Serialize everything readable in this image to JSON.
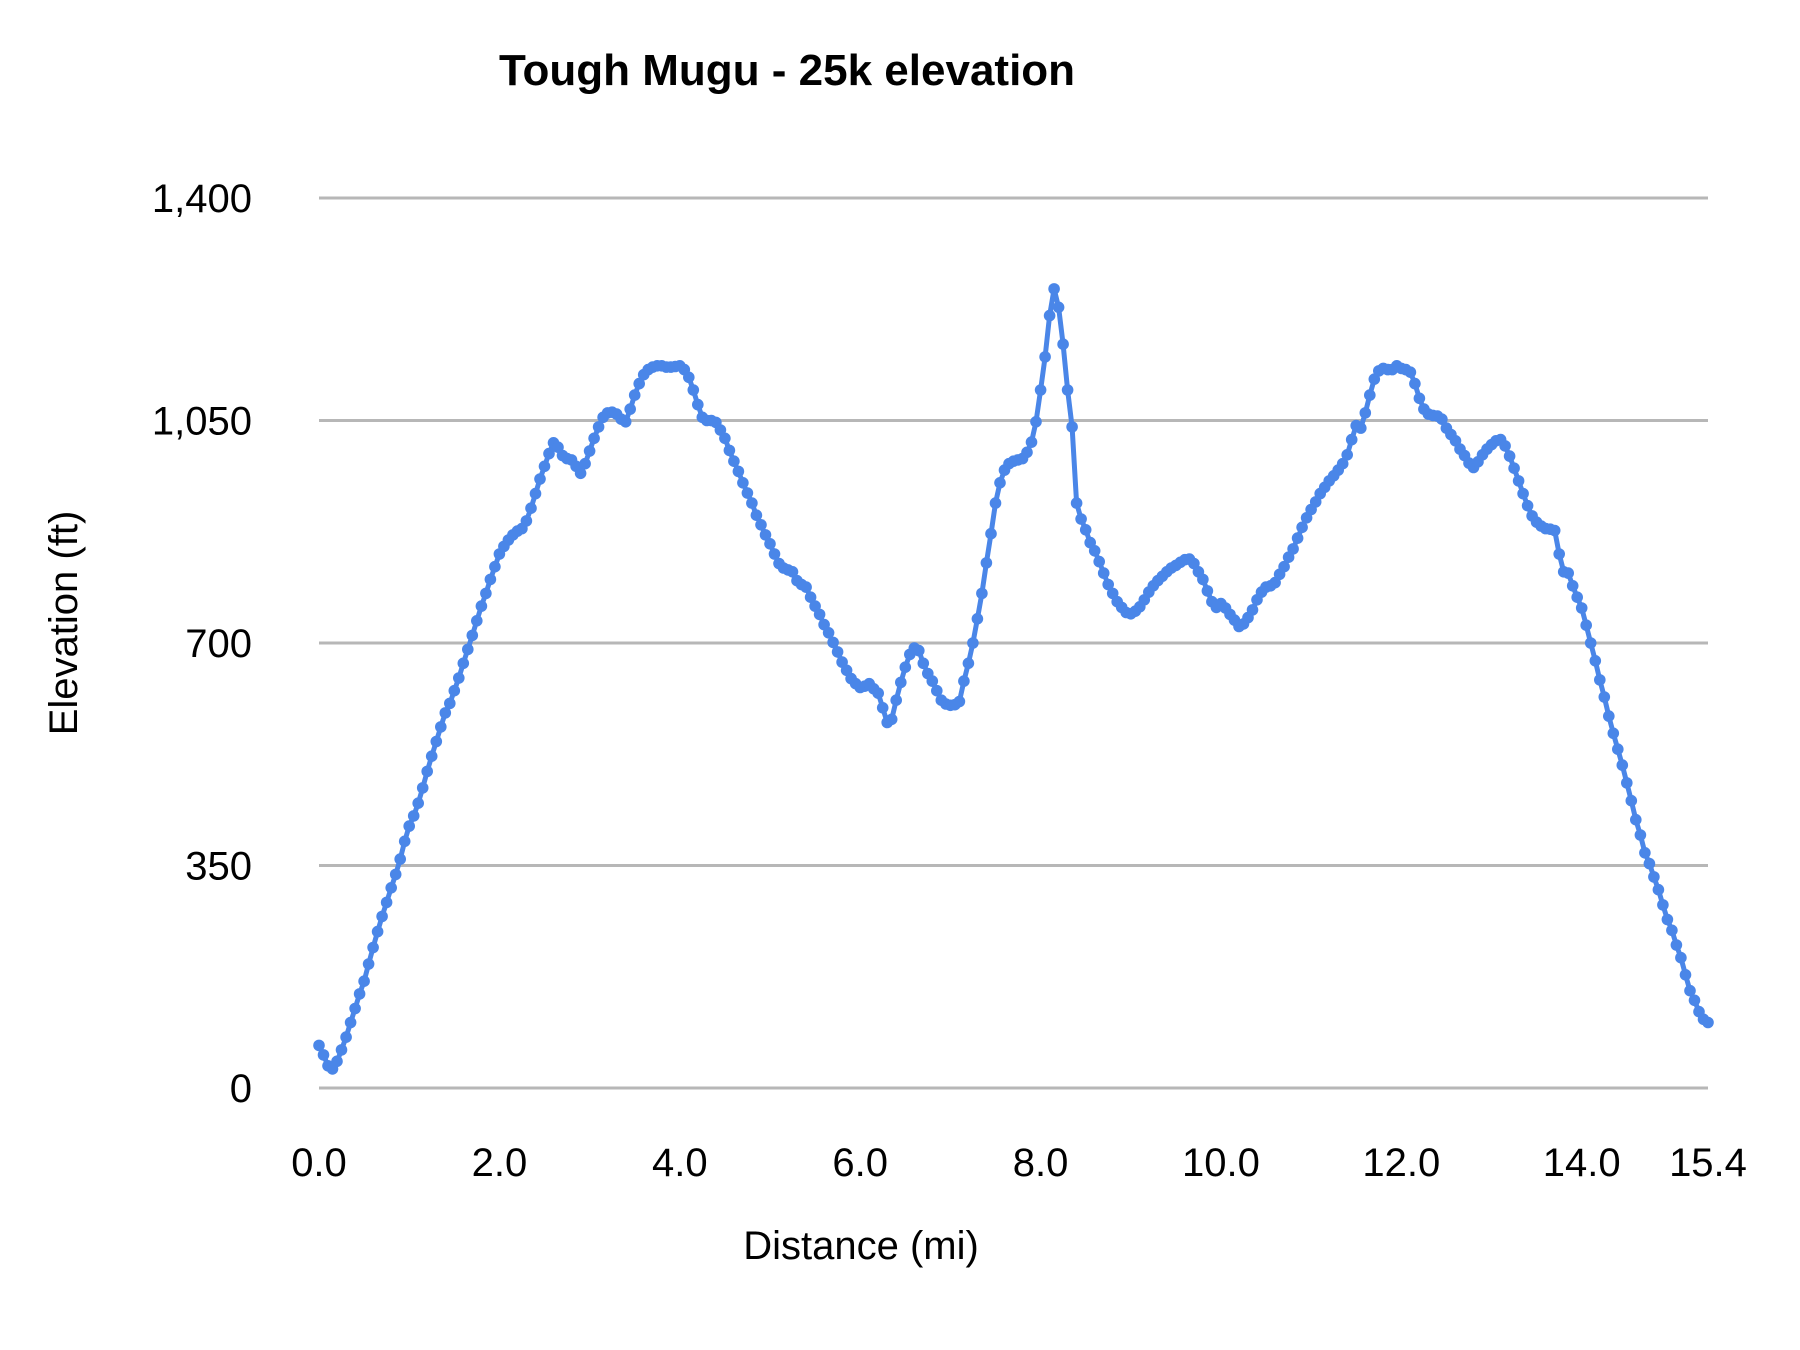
{
  "page": {
    "background": "#ffffff"
  },
  "style": {
    "accent": "#4a86e8",
    "grid_color": "#b7b7b7",
    "text_color": "#000000"
  },
  "chart_data": {
    "type": "line",
    "title": "Tough Mugu - 25k elevation",
    "xlabel": "Distance (mi)",
    "ylabel": "Elevation (ft)",
    "xlim": [
      0,
      15.4
    ],
    "ylim": [
      0,
      1400
    ],
    "grid": "horizontal",
    "legend": "none",
    "x_tick_values": [
      0,
      2,
      4,
      6,
      8,
      10,
      12,
      14,
      15.4
    ],
    "x_tick_labels": [
      "0.0",
      "2.0",
      "4.0",
      "6.0",
      "8.0",
      "10.0",
      "12.0",
      "14.0",
      "15.4"
    ],
    "y_tick_values": [
      0,
      350,
      700,
      1050,
      1400
    ],
    "y_tick_labels": [
      "0",
      "350",
      "700",
      "1,050",
      "1,400"
    ],
    "series": [
      {
        "name": "Elevation",
        "color": "#4a86e8",
        "marker": "circle",
        "points": [
          [
            0.0,
            67
          ],
          [
            0.05,
            52
          ],
          [
            0.1,
            35
          ],
          [
            0.15,
            30
          ],
          [
            0.2,
            42
          ],
          [
            0.25,
            60
          ],
          [
            0.3,
            80
          ],
          [
            0.35,
            103
          ],
          [
            0.4,
            125
          ],
          [
            0.45,
            148
          ],
          [
            0.5,
            168
          ],
          [
            0.55,
            195
          ],
          [
            0.6,
            221
          ],
          [
            0.65,
            246
          ],
          [
            0.7,
            270
          ],
          [
            0.75,
            292
          ],
          [
            0.8,
            315
          ],
          [
            0.85,
            336
          ],
          [
            0.9,
            360
          ],
          [
            0.95,
            388
          ],
          [
            1.0,
            412
          ],
          [
            1.05,
            428
          ],
          [
            1.1,
            448
          ],
          [
            1.15,
            472
          ],
          [
            1.2,
            498
          ],
          [
            1.25,
            522
          ],
          [
            1.3,
            545
          ],
          [
            1.35,
            568
          ],
          [
            1.4,
            590
          ],
          [
            1.45,
            605
          ],
          [
            1.5,
            625
          ],
          [
            1.55,
            645
          ],
          [
            1.6,
            668
          ],
          [
            1.65,
            690
          ],
          [
            1.7,
            712
          ],
          [
            1.75,
            735
          ],
          [
            1.8,
            758
          ],
          [
            1.85,
            778
          ],
          [
            1.9,
            800
          ],
          [
            1.95,
            820
          ],
          [
            2.0,
            840
          ],
          [
            2.05,
            852
          ],
          [
            2.1,
            862
          ],
          [
            2.15,
            870
          ],
          [
            2.2,
            876
          ],
          [
            2.25,
            880
          ],
          [
            2.3,
            892
          ],
          [
            2.35,
            912
          ],
          [
            2.4,
            935
          ],
          [
            2.45,
            958
          ],
          [
            2.5,
            978
          ],
          [
            2.55,
            998
          ],
          [
            2.6,
            1015
          ],
          [
            2.65,
            1008
          ],
          [
            2.7,
            995
          ],
          [
            2.75,
            990
          ],
          [
            2.8,
            988
          ],
          [
            2.85,
            978
          ],
          [
            2.9,
            967
          ],
          [
            2.95,
            982
          ],
          [
            3.0,
            1002
          ],
          [
            3.05,
            1022
          ],
          [
            3.1,
            1040
          ],
          [
            3.15,
            1055
          ],
          [
            3.2,
            1062
          ],
          [
            3.25,
            1063
          ],
          [
            3.3,
            1060
          ],
          [
            3.35,
            1052
          ],
          [
            3.4,
            1048
          ],
          [
            3.45,
            1068
          ],
          [
            3.5,
            1090
          ],
          [
            3.55,
            1108
          ],
          [
            3.6,
            1122
          ],
          [
            3.65,
            1130
          ],
          [
            3.7,
            1134
          ],
          [
            3.75,
            1136
          ],
          [
            3.8,
            1136
          ],
          [
            3.85,
            1134
          ],
          [
            3.9,
            1134
          ],
          [
            3.95,
            1135
          ],
          [
            4.0,
            1136
          ],
          [
            4.05,
            1130
          ],
          [
            4.1,
            1118
          ],
          [
            4.15,
            1098
          ],
          [
            4.2,
            1075
          ],
          [
            4.25,
            1055
          ],
          [
            4.3,
            1050
          ],
          [
            4.35,
            1050
          ],
          [
            4.4,
            1047
          ],
          [
            4.45,
            1035
          ],
          [
            4.5,
            1022
          ],
          [
            4.55,
            1003
          ],
          [
            4.6,
            986
          ],
          [
            4.65,
            970
          ],
          [
            4.7,
            952
          ],
          [
            4.75,
            936
          ],
          [
            4.8,
            920
          ],
          [
            4.85,
            901
          ],
          [
            4.9,
            886
          ],
          [
            4.95,
            870
          ],
          [
            5.0,
            856
          ],
          [
            5.05,
            840
          ],
          [
            5.1,
            825
          ],
          [
            5.15,
            818
          ],
          [
            5.2,
            815
          ],
          [
            5.25,
            812
          ],
          [
            5.3,
            798
          ],
          [
            5.35,
            792
          ],
          [
            5.4,
            788
          ],
          [
            5.45,
            772
          ],
          [
            5.5,
            758
          ],
          [
            5.55,
            745
          ],
          [
            5.6,
            729
          ],
          [
            5.65,
            716
          ],
          [
            5.7,
            701
          ],
          [
            5.75,
            686
          ],
          [
            5.8,
            670
          ],
          [
            5.85,
            657
          ],
          [
            5.9,
            644
          ],
          [
            5.95,
            636
          ],
          [
            6.0,
            630
          ],
          [
            6.05,
            632
          ],
          [
            6.1,
            636
          ],
          [
            6.15,
            628
          ],
          [
            6.2,
            621
          ],
          [
            6.25,
            598
          ],
          [
            6.3,
            575
          ],
          [
            6.35,
            580
          ],
          [
            6.4,
            610
          ],
          [
            6.45,
            638
          ],
          [
            6.5,
            662
          ],
          [
            6.55,
            682
          ],
          [
            6.6,
            692
          ],
          [
            6.65,
            688
          ],
          [
            6.7,
            668
          ],
          [
            6.75,
            652
          ],
          [
            6.8,
            640
          ],
          [
            6.85,
            625
          ],
          [
            6.9,
            610
          ],
          [
            6.95,
            604
          ],
          [
            7.0,
            602
          ],
          [
            7.05,
            603
          ],
          [
            7.1,
            608
          ],
          [
            7.15,
            640
          ],
          [
            7.2,
            668
          ],
          [
            7.25,
            700
          ],
          [
            7.3,
            738
          ],
          [
            7.35,
            778
          ],
          [
            7.4,
            826
          ],
          [
            7.45,
            872
          ],
          [
            7.5,
            920
          ],
          [
            7.55,
            952
          ],
          [
            7.6,
            972
          ],
          [
            7.65,
            982
          ],
          [
            7.7,
            986
          ],
          [
            7.75,
            988
          ],
          [
            7.8,
            990
          ],
          [
            7.85,
            1000
          ],
          [
            7.9,
            1016
          ],
          [
            7.95,
            1048
          ],
          [
            8.0,
            1098
          ],
          [
            8.05,
            1150
          ],
          [
            8.1,
            1215
          ],
          [
            8.15,
            1257
          ],
          [
            8.2,
            1228
          ],
          [
            8.25,
            1170
          ],
          [
            8.3,
            1098
          ],
          [
            8.35,
            1040
          ],
          [
            8.4,
            920
          ],
          [
            8.45,
            895
          ],
          [
            8.5,
            878
          ],
          [
            8.55,
            858
          ],
          [
            8.6,
            845
          ],
          [
            8.65,
            828
          ],
          [
            8.7,
            810
          ],
          [
            8.75,
            792
          ],
          [
            8.8,
            778
          ],
          [
            8.85,
            765
          ],
          [
            8.9,
            756
          ],
          [
            8.95,
            748
          ],
          [
            9.0,
            746
          ],
          [
            9.05,
            750
          ],
          [
            9.1,
            757
          ],
          [
            9.15,
            768
          ],
          [
            9.2,
            780
          ],
          [
            9.25,
            790
          ],
          [
            9.3,
            798
          ],
          [
            9.35,
            805
          ],
          [
            9.4,
            812
          ],
          [
            9.45,
            818
          ],
          [
            9.5,
            822
          ],
          [
            9.55,
            827
          ],
          [
            9.6,
            831
          ],
          [
            9.65,
            832
          ],
          [
            9.7,
            825
          ],
          [
            9.75,
            812
          ],
          [
            9.8,
            800
          ],
          [
            9.85,
            782
          ],
          [
            9.9,
            765
          ],
          [
            9.95,
            756
          ],
          [
            10.0,
            762
          ],
          [
            10.05,
            755
          ],
          [
            10.1,
            745
          ],
          [
            10.15,
            736
          ],
          [
            10.2,
            726
          ],
          [
            10.25,
            730
          ],
          [
            10.3,
            740
          ],
          [
            10.35,
            752
          ],
          [
            10.4,
            768
          ],
          [
            10.45,
            780
          ],
          [
            10.5,
            788
          ],
          [
            10.55,
            790
          ],
          [
            10.6,
            795
          ],
          [
            10.65,
            808
          ],
          [
            10.7,
            820
          ],
          [
            10.75,
            835
          ],
          [
            10.8,
            848
          ],
          [
            10.85,
            865
          ],
          [
            10.9,
            882
          ],
          [
            10.95,
            897
          ],
          [
            11.0,
            910
          ],
          [
            11.05,
            922
          ],
          [
            11.1,
            935
          ],
          [
            11.15,
            945
          ],
          [
            11.2,
            955
          ],
          [
            11.25,
            963
          ],
          [
            11.3,
            972
          ],
          [
            11.35,
            982
          ],
          [
            11.4,
            996
          ],
          [
            11.45,
            1020
          ],
          [
            11.5,
            1042
          ],
          [
            11.55,
            1038
          ],
          [
            11.6,
            1062
          ],
          [
            11.65,
            1090
          ],
          [
            11.7,
            1115
          ],
          [
            11.75,
            1128
          ],
          [
            11.8,
            1132
          ],
          [
            11.85,
            1130
          ],
          [
            11.9,
            1130
          ],
          [
            11.95,
            1136
          ],
          [
            12.0,
            1132
          ],
          [
            12.05,
            1130
          ],
          [
            12.1,
            1126
          ],
          [
            12.15,
            1108
          ],
          [
            12.2,
            1085
          ],
          [
            12.25,
            1068
          ],
          [
            12.3,
            1060
          ],
          [
            12.35,
            1058
          ],
          [
            12.4,
            1057
          ],
          [
            12.45,
            1052
          ],
          [
            12.5,
            1038
          ],
          [
            12.55,
            1028
          ],
          [
            12.6,
            1018
          ],
          [
            12.65,
            1005
          ],
          [
            12.7,
            995
          ],
          [
            12.75,
            983
          ],
          [
            12.8,
            976
          ],
          [
            12.85,
            985
          ],
          [
            12.9,
            996
          ],
          [
            12.95,
            1005
          ],
          [
            13.0,
            1012
          ],
          [
            13.05,
            1018
          ],
          [
            13.1,
            1020
          ],
          [
            13.15,
            1010
          ],
          [
            13.2,
            994
          ],
          [
            13.25,
            975
          ],
          [
            13.3,
            955
          ],
          [
            13.35,
            935
          ],
          [
            13.4,
            916
          ],
          [
            13.45,
            900
          ],
          [
            13.5,
            890
          ],
          [
            13.55,
            884
          ],
          [
            13.6,
            880
          ],
          [
            13.65,
            879
          ],
          [
            13.7,
            877
          ],
          [
            13.75,
            840
          ],
          [
            13.8,
            812
          ],
          [
            13.85,
            810
          ],
          [
            13.9,
            790
          ],
          [
            13.95,
            772
          ],
          [
            14.0,
            755
          ],
          [
            14.05,
            728
          ],
          [
            14.1,
            700
          ],
          [
            14.15,
            672
          ],
          [
            14.2,
            642
          ],
          [
            14.25,
            615
          ],
          [
            14.3,
            585
          ],
          [
            14.35,
            558
          ],
          [
            14.4,
            533
          ],
          [
            14.45,
            508
          ],
          [
            14.5,
            480
          ],
          [
            14.55,
            452
          ],
          [
            14.6,
            422
          ],
          [
            14.65,
            398
          ],
          [
            14.7,
            370
          ],
          [
            14.75,
            353
          ],
          [
            14.8,
            332
          ],
          [
            14.85,
            312
          ],
          [
            14.9,
            288
          ],
          [
            14.95,
            265
          ],
          [
            15.0,
            248
          ],
          [
            15.05,
            225
          ],
          [
            15.1,
            205
          ],
          [
            15.15,
            178
          ],
          [
            15.2,
            153
          ],
          [
            15.25,
            138
          ],
          [
            15.3,
            120
          ],
          [
            15.35,
            108
          ],
          [
            15.4,
            103
          ]
        ]
      }
    ]
  }
}
